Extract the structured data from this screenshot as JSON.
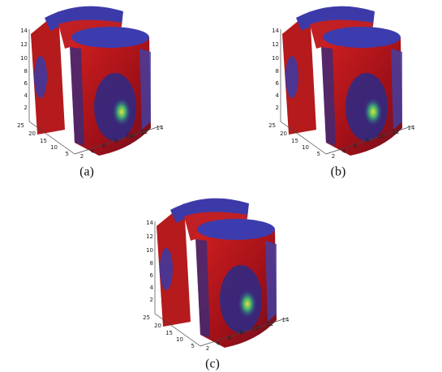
{
  "panels": [
    {
      "caption": "(a)"
    },
    {
      "caption": "(b)"
    },
    {
      "caption": "(c)"
    }
  ],
  "axes": {
    "z_ticks": [
      2,
      4,
      6,
      8,
      10,
      12,
      14
    ],
    "depth_ticks": [
      25,
      20,
      15,
      10,
      5
    ],
    "x_ticks": [
      2,
      4,
      6,
      8,
      10,
      12,
      14
    ]
  }
}
